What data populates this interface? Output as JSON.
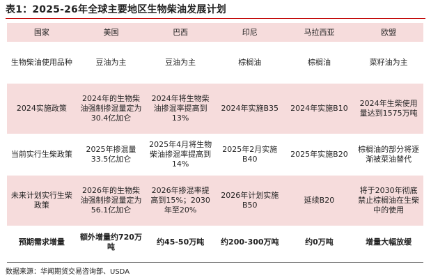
{
  "title": "表1：2025-26年全球主要地区生物柴油发展计划",
  "header": [
    "国家",
    "美国",
    "巴西",
    "印尼",
    "马拉西亚",
    "欧盟"
  ],
  "rows": [
    [
      "生物柴油使用品种",
      "豆油为主",
      "豆油为主",
      "棕榈油",
      "棕榈油",
      "菜籽油为主"
    ],
    [
      "2024实施政策",
      "2024年的生物柴油强制掺混量定为30.4亿加仑",
      "2024年将生物柴油掺混率提高到13%",
      "2024年实施B35",
      "2024年实施B10",
      "2024年生柴使用量达到1575万吨"
    ],
    [
      "当前实行生柴政策",
      "2025年掺混量33.5亿加仑",
      "2025年4月将生物柴油掺混率提高到14%",
      "2025年2月实施B40",
      "2025年实施B20",
      "棕榈油的部分将逐渐被菜油替代"
    ],
    [
      "未来计划实行生柴政策",
      "2026年的生物柴油强制掺混量定为56.1亿加仑",
      "2026年掺混率提高到15%；2030年至20%",
      "2026年计划实施B50",
      "延续B20",
      "将于2030年彻底禁止棕榈油在生柴中的使用"
    ],
    [
      "预期需求增量",
      "额外增量约720万吨",
      "约45-50万吨",
      "约200-300万吨",
      "约0万吨",
      "增量大幅放缓"
    ]
  ],
  "source": "数据来源：华闻期货交易咨询部、USDA",
  "colors": {
    "accent_rule": "#c00000",
    "row_band": "#f6dcdc"
  }
}
